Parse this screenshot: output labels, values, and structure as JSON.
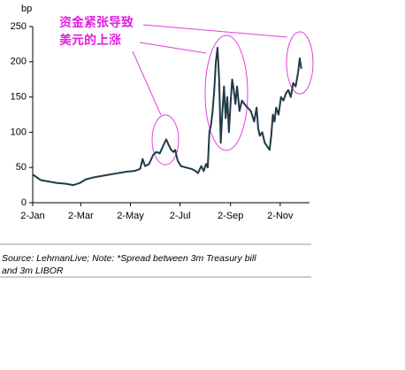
{
  "chart_data": {
    "type": "line",
    "y_label": "bp",
    "annotation": [
      "资金紧张导致",
      "美元的上涨"
    ],
    "source": [
      "Source: LehmanLive; Note: *Spread between 3m Treasury bill",
      "and 3m LIBOR"
    ],
    "x": [
      0,
      5,
      10,
      20,
      30,
      40,
      50,
      58,
      65,
      75,
      85,
      95,
      105,
      115,
      125,
      132,
      135,
      138,
      143,
      148,
      152,
      156,
      160,
      164,
      167,
      170,
      173,
      175,
      178,
      182,
      188,
      195,
      200,
      203,
      207,
      210,
      213,
      215,
      217,
      219,
      221,
      223,
      225,
      227,
      229,
      231,
      233,
      235,
      237,
      239,
      241,
      243,
      245,
      247,
      249,
      251,
      254,
      257,
      260,
      264,
      268,
      272,
      275,
      277,
      279,
      282,
      285,
      288,
      291,
      293,
      295,
      297,
      299,
      302,
      305,
      308,
      311,
      314,
      317,
      320,
      323,
      326,
      328,
      330
    ],
    "series": [
      {
        "color": "#1f3a48",
        "values": [
          40,
          36,
          32,
          30,
          28,
          27,
          25,
          28,
          33,
          36,
          38,
          40,
          42,
          44,
          45,
          48,
          62,
          52,
          55,
          68,
          72,
          70,
          80,
          90,
          82,
          75,
          72,
          75,
          60,
          52,
          50,
          48,
          45,
          42,
          52,
          45,
          55,
          50,
          100,
          110,
          130,
          160,
          200,
          220,
          175,
          85,
          130,
          165,
          120,
          150,
          100,
          140,
          175,
          160,
          140,
          165,
          130,
          145,
          140,
          135,
          130,
          115,
          135,
          105,
          95,
          100,
          85,
          80,
          75,
          95,
          125,
          115,
          135,
          125,
          150,
          145,
          155,
          160,
          150,
          170,
          165,
          185,
          205,
          190
        ]
      }
    ],
    "xlim": [
      0,
      340
    ],
    "xticks": [
      {
        "value": 0,
        "label": "2-Jan"
      },
      {
        "value": 59,
        "label": "2-Mar"
      },
      {
        "value": 120,
        "label": "2-May"
      },
      {
        "value": 181,
        "label": "2-Jul"
      },
      {
        "value": 243,
        "label": "2-Sep"
      },
      {
        "value": 304,
        "label": "2-Nov"
      }
    ],
    "ylim": [
      0,
      250
    ],
    "yticks": [
      0,
      50,
      100,
      150,
      200,
      250
    ]
  }
}
